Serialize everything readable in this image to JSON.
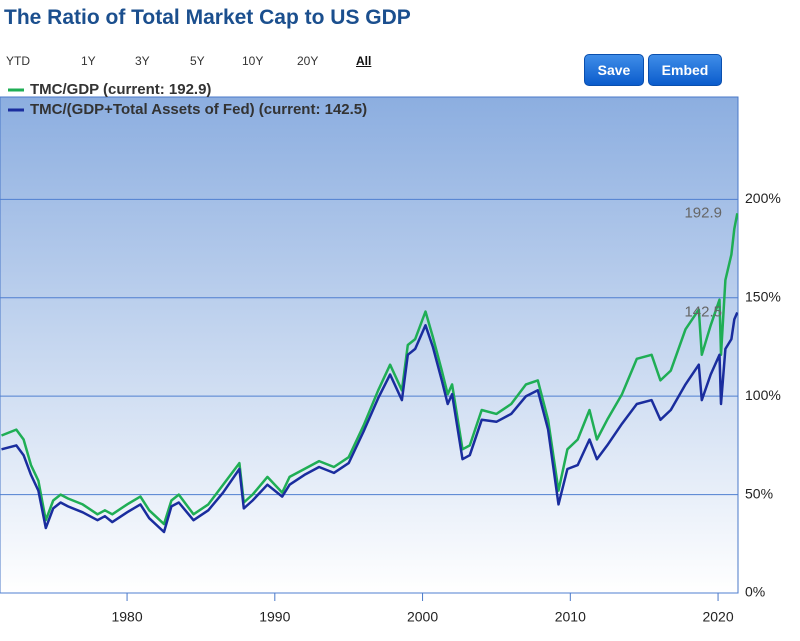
{
  "header": {
    "title": "The Ratio of Total Market Cap to US GDP"
  },
  "range_buttons": [
    "YTD",
    "1Y",
    "3Y",
    "5Y",
    "10Y",
    "20Y",
    "All"
  ],
  "actions": [
    "Save",
    "Embed"
  ],
  "chart_data": {
    "type": "line",
    "x": [
      1971.5,
      1972.5,
      1973.0,
      1973.5,
      1974.0,
      1974.5,
      1975.0,
      1975.5,
      1976.0,
      1977.0,
      1978.0,
      1978.5,
      1979.0,
      1980.0,
      1980.9,
      1981.5,
      1982.5,
      1983.0,
      1983.5,
      1984.5,
      1985.5,
      1986.5,
      1987.6,
      1987.9,
      1988.5,
      1989.5,
      1990.5,
      1991.0,
      1992.0,
      1993.0,
      1994.0,
      1995.0,
      1996.0,
      1997.0,
      1997.8,
      1998.6,
      1999.0,
      1999.5,
      2000.2,
      2000.7,
      2001.3,
      2001.7,
      2002.0,
      2002.7,
      2003.2,
      2004.0,
      2005.0,
      2006.0,
      2007.0,
      2007.8,
      2008.5,
      2009.2,
      2009.8,
      2010.5,
      2011.3,
      2011.8,
      2012.5,
      2013.5,
      2014.5,
      2015.5,
      2016.1,
      2016.8,
      2017.8,
      2018.7,
      2018.9,
      2019.5,
      2020.1,
      2020.2,
      2020.5,
      2020.9,
      2021.1,
      2021.3
    ],
    "series": [
      {
        "name": "TMC/GDP (current: 192.9)",
        "color": "#1fae55",
        "values": [
          80,
          83,
          78,
          65,
          57,
          37,
          47,
          50,
          48,
          45,
          40,
          42,
          40,
          45,
          49,
          42,
          35,
          47,
          50,
          40,
          45,
          55,
          66,
          46,
          50,
          59,
          51,
          59,
          63,
          67,
          64,
          69,
          85,
          103,
          116,
          103,
          126,
          129,
          143,
          130,
          113,
          101,
          106,
          73,
          75,
          93,
          91,
          96,
          106,
          108,
          88,
          52,
          73,
          78,
          93,
          78,
          88,
          101,
          119,
          121,
          108,
          113,
          134,
          144,
          121,
          136,
          149,
          121,
          159,
          172,
          185,
          192.9
        ]
      },
      {
        "name": "TMC/(GDP+Total Assets of Fed) (current: 142.5)",
        "color": "#1a2d9e",
        "values": [
          73,
          75,
          70,
          60,
          52,
          33,
          43,
          46,
          44,
          41,
          37,
          39,
          36,
          41,
          45,
          38,
          31,
          44,
          46,
          37,
          42,
          51,
          63,
          43,
          47,
          55,
          49,
          55,
          60,
          64,
          61,
          66,
          82,
          99,
          111,
          98,
          121,
          124,
          136,
          125,
          108,
          96,
          101,
          68,
          70,
          88,
          87,
          91,
          100,
          103,
          83,
          45,
          63,
          65,
          78,
          68,
          75,
          86,
          96,
          98,
          88,
          93,
          106,
          116,
          98,
          111,
          121,
          96,
          124,
          129,
          139,
          142.5
        ]
      }
    ],
    "xlim": [
      1971.4,
      2021.35
    ],
    "xticks": [
      1980,
      1990,
      2000,
      2010,
      2020
    ],
    "ylim": [
      0,
      252
    ],
    "yticks": [
      {
        "value": 0,
        "label": "0%"
      },
      {
        "value": 50,
        "label": "50%"
      },
      {
        "value": 100,
        "label": "100%"
      },
      {
        "value": 150,
        "label": "150%"
      },
      {
        "value": 200,
        "label": "200%"
      }
    ],
    "grid": true
  }
}
